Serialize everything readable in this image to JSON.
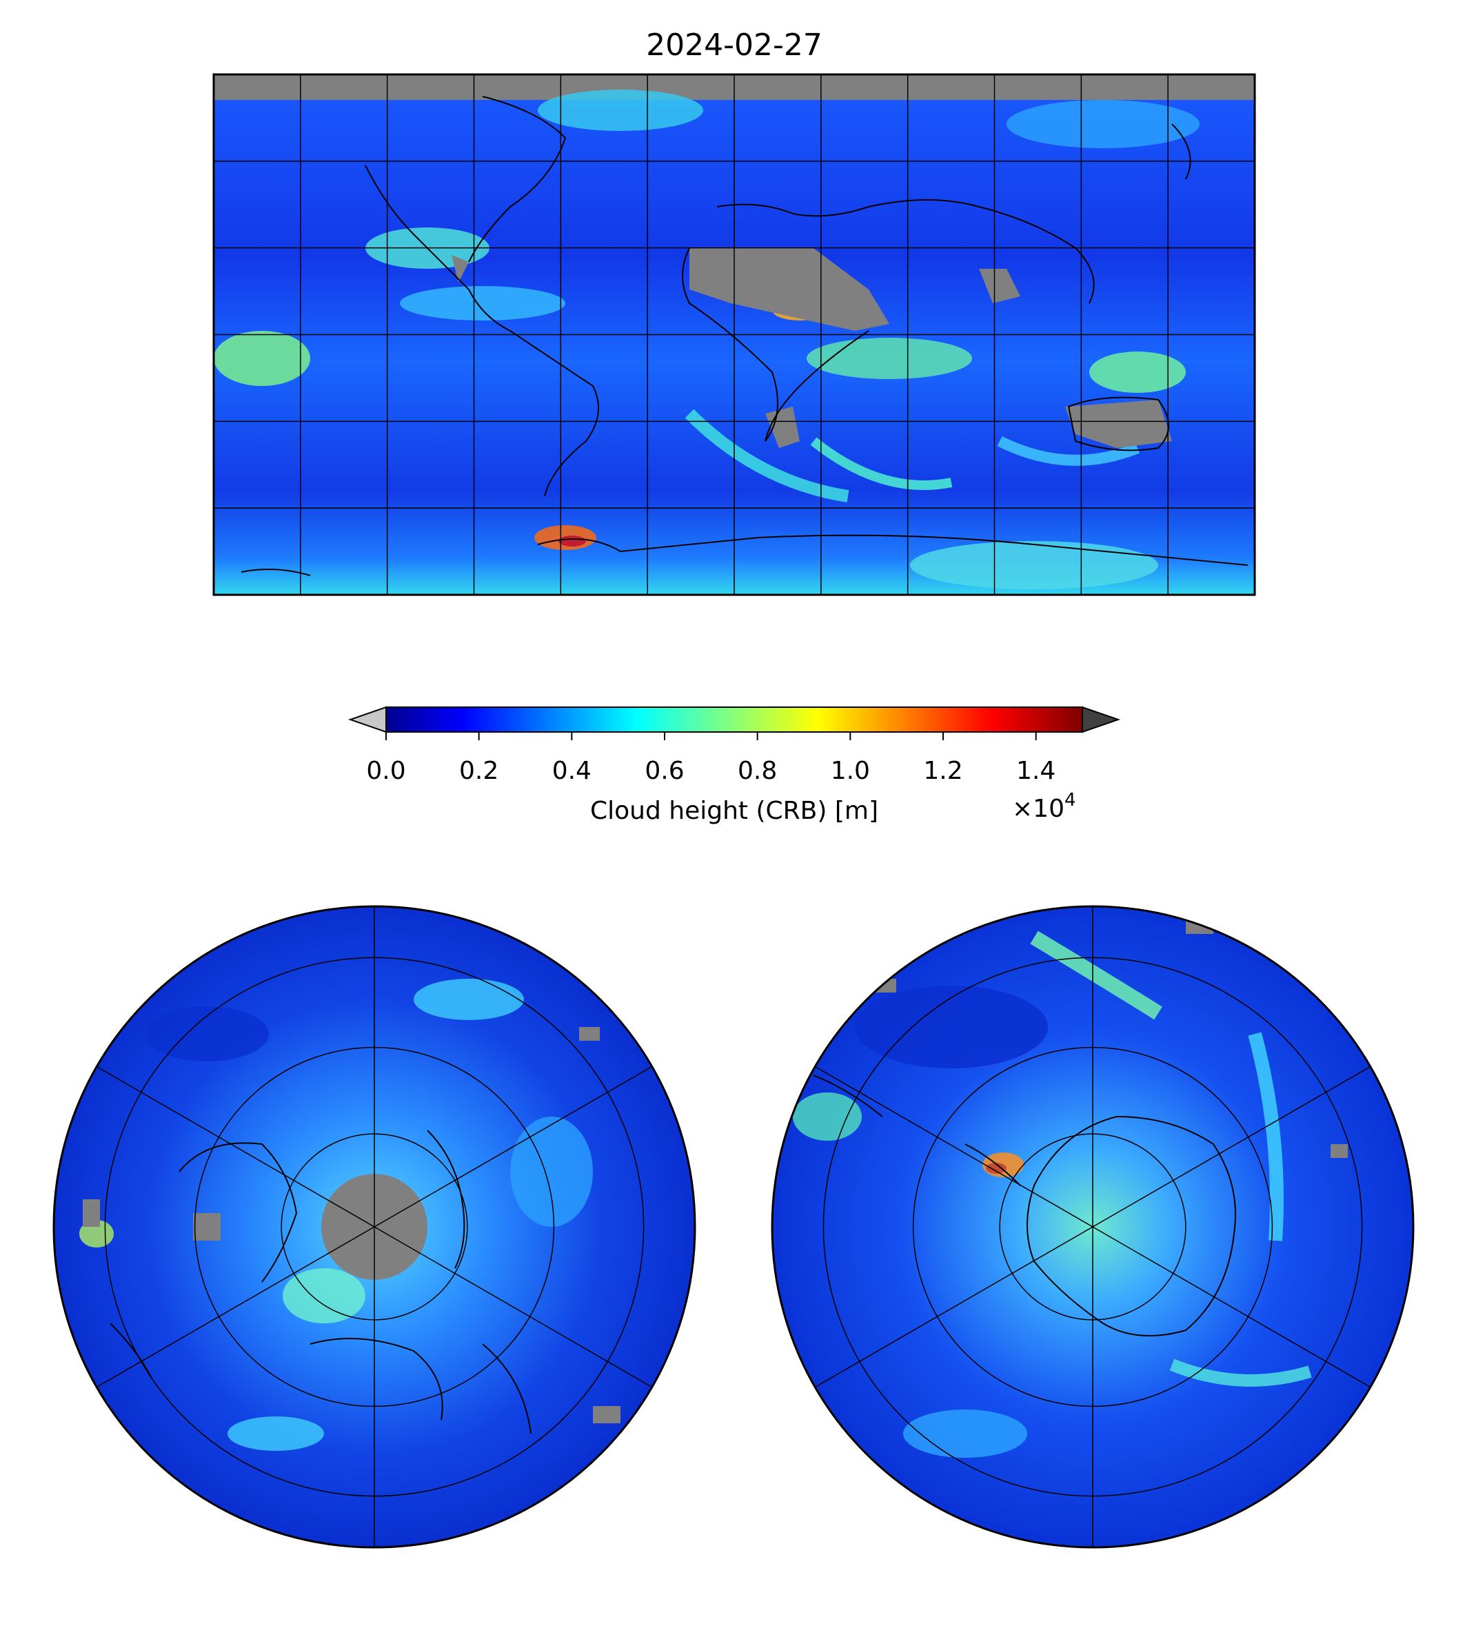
{
  "title": "2024-02-27",
  "colorbar": {
    "label": "Cloud height (CRB) [m]",
    "ticks": [
      "0.0",
      "0.2",
      "0.4",
      "0.6",
      "0.8",
      "1.0",
      "1.2",
      "1.4"
    ],
    "multiplier_base": "×10",
    "multiplier_exp": "4",
    "range": [
      0,
      15000
    ],
    "colormap": "jet",
    "under_color": "#c8c8c8",
    "over_color": "#404040"
  },
  "colors": {
    "missing": "#808080",
    "ocean_low": "#0a1fd6",
    "mid": "#1e90ff",
    "cyan": "#2ee6e6",
    "green": "#7cff7c",
    "yellow": "#ffff33",
    "orange": "#ff8c1a",
    "red": "#e01010"
  },
  "maps": [
    {
      "name": "global",
      "projection": "plate-carree"
    },
    {
      "name": "north-polar",
      "projection": "north-polar-stereographic"
    },
    {
      "name": "south-polar",
      "projection": "south-polar-stereographic"
    }
  ]
}
